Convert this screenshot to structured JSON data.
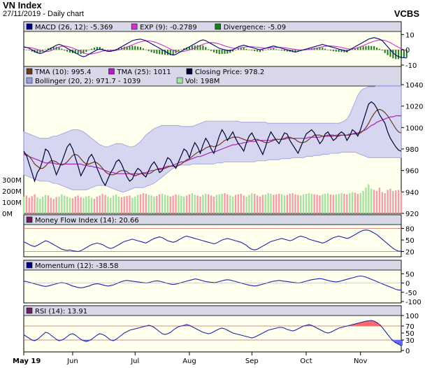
{
  "header": {
    "title": "VN Index",
    "subtitle": "27/11/2019 - Daily chart",
    "source": "VCBS"
  },
  "x_axis": {
    "months": [
      "May 19",
      "Jun",
      "Jul",
      "Aug",
      "Sep",
      "Oct",
      "Nov"
    ],
    "bold_first": true
  },
  "colors": {
    "panel_bg": "#ffffee",
    "legend_bg": "#d8d8e8",
    "tma10": "#6b3a1f",
    "tma25": "#aa22bb",
    "close": "#000033",
    "bollinger_fill": "#c8c8f0",
    "bollinger_edge": "#9a9ae0",
    "vol_up": "#a8e0a0",
    "vol_down": "#f0a0a8",
    "macd": "#000080",
    "exp": "#cc33cc",
    "divergence": "#1a7a1a",
    "indicator_line": "#2222aa",
    "ref_line": "#cc6666",
    "rsi_over": "#ff6666",
    "rsi_under": "#6666ff"
  },
  "panels": {
    "macd": {
      "legend": [
        {
          "label": "MACD (26, 12): -5.369",
          "color": "#000080"
        },
        {
          "label": "EXP (9): -0.2789",
          "color": "#cc33cc"
        },
        {
          "label": "Divergence: -5.09",
          "color": "#1a7a1a"
        }
      ],
      "ticks": [
        "10",
        "0",
        "-10"
      ],
      "ylim": [
        -10,
        12
      ]
    },
    "price": {
      "legend_row1": [
        {
          "label": "TMA (10): 995.4",
          "color": "#6b3a1f"
        },
        {
          "label": "TMA (25): 1011",
          "color": "#aa22bb"
        },
        {
          "label": "Closing Price: 978.2",
          "color": "#000033"
        }
      ],
      "legend_row2": [
        {
          "label": "Bollinger (20, 2): 971.7 - 1039",
          "color": "#9a9ae0"
        },
        {
          "label": "Vol: 198M",
          "color": "#a8e0a0"
        }
      ],
      "ticks": [
        "1040",
        "1020",
        "1000",
        "980",
        "960",
        "940",
        "920"
      ],
      "ylim": [
        920,
        1040
      ],
      "vol_ticks": [
        "300M",
        "200M",
        "100M",
        "0M"
      ],
      "vol_max": 300
    },
    "mfi": {
      "legend": [
        {
          "label": "Money Flow Index (14): 20.66",
          "color": "#6b2060"
        }
      ],
      "ticks": [
        "80",
        "50",
        "20"
      ],
      "ylim": [
        10,
        90
      ]
    },
    "momentum": {
      "legend": [
        {
          "label": "Momentum (12): -38.58",
          "color": "#000080"
        }
      ],
      "ticks": [
        "50",
        "0",
        "-50",
        "-100"
      ],
      "ylim": [
        -100,
        70
      ]
    },
    "rsi": {
      "legend": [
        {
          "label": "RSI (14): 13.91",
          "color": "#6b2060"
        }
      ],
      "ticks": [
        "100",
        "70",
        "50",
        "30",
        "0"
      ],
      "ylim": [
        0,
        100
      ]
    }
  },
  "chart_data": {
    "type": "line",
    "n": 140,
    "close": [
      978,
      974,
      966,
      958,
      950,
      958,
      962,
      970,
      980,
      978,
      972,
      964,
      956,
      962,
      968,
      975,
      982,
      985,
      980,
      972,
      964,
      955,
      960,
      965,
      972,
      975,
      970,
      962,
      956,
      950,
      946,
      952,
      958,
      962,
      968,
      970,
      966,
      960,
      954,
      950,
      952,
      958,
      962,
      960,
      956,
      954,
      960,
      965,
      968,
      964,
      958,
      960,
      966,
      972,
      970,
      965,
      962,
      968,
      974,
      980,
      978,
      972,
      980,
      986,
      982,
      976,
      984,
      990,
      986,
      980,
      976,
      984,
      992,
      998,
      994,
      988,
      992,
      996,
      990,
      985,
      982,
      978,
      986,
      992,
      995,
      990,
      985,
      980,
      975,
      982,
      990,
      996,
      992,
      988,
      985,
      990,
      995,
      994,
      988,
      984,
      980,
      976,
      982,
      988,
      994,
      996,
      998,
      995,
      990,
      985,
      988,
      994,
      996,
      992,
      988,
      990,
      994,
      996,
      994,
      988,
      992,
      998,
      996,
      992,
      998,
      1006,
      1014,
      1022,
      1024,
      1022,
      1018,
      1012,
      1008,
      1004,
      996,
      990,
      986,
      982,
      979,
      978
    ],
    "tma10": [
      976,
      975,
      973,
      970,
      966,
      964,
      962,
      962,
      964,
      967,
      969,
      969,
      968,
      966,
      965,
      966,
      968,
      971,
      974,
      975,
      974,
      971,
      968,
      966,
      966,
      967,
      968,
      967,
      965,
      962,
      959,
      957,
      956,
      956,
      957,
      959,
      960,
      960,
      959,
      957,
      956,
      955,
      956,
      957,
      957,
      957,
      957,
      958,
      960,
      961,
      961,
      961,
      962,
      963,
      964,
      964,
      964,
      965,
      966,
      968,
      970,
      971,
      973,
      975,
      977,
      978,
      979,
      981,
      982,
      983,
      982,
      983,
      984,
      986,
      988,
      989,
      990,
      991,
      991,
      991,
      990,
      989,
      988,
      988,
      988,
      989,
      989,
      988,
      987,
      986,
      986,
      987,
      988,
      989,
      989,
      989,
      990,
      991,
      991,
      990,
      989,
      987,
      986,
      986,
      987,
      989,
      991,
      993,
      993,
      993,
      992,
      992,
      993,
      993,
      993,
      992,
      992,
      993,
      993,
      993,
      993,
      994,
      994,
      994,
      995,
      997,
      1000,
      1004,
      1009,
      1013,
      1016,
      1017,
      1016,
      1014,
      1011,
      1007,
      1003,
      999,
      996,
      995
    ],
    "tma25": [
      975,
      974,
      973,
      972,
      971,
      970,
      969,
      968,
      967,
      967,
      967,
      967,
      966,
      966,
      966,
      966,
      966,
      966,
      966,
      966,
      966,
      966,
      965,
      965,
      964,
      964,
      963,
      963,
      962,
      961,
      960,
      959,
      958,
      958,
      957,
      957,
      957,
      957,
      957,
      957,
      957,
      957,
      957,
      957,
      958,
      958,
      959,
      960,
      960,
      961,
      962,
      962,
      963,
      964,
      964,
      965,
      966,
      967,
      968,
      968,
      969,
      970,
      971,
      972,
      973,
      973,
      974,
      975,
      976,
      977,
      977,
      978,
      979,
      980,
      981,
      982,
      983,
      984,
      984,
      985,
      985,
      986,
      986,
      987,
      987,
      987,
      988,
      988,
      988,
      988,
      988,
      988,
      989,
      989,
      989,
      989,
      989,
      990,
      990,
      990,
      990,
      990,
      990,
      990,
      990,
      991,
      991,
      991,
      991,
      991,
      992,
      992,
      992,
      992,
      992,
      993,
      993,
      993,
      993,
      993,
      994,
      994,
      995,
      995,
      996,
      997,
      998,
      1000,
      1002,
      1003,
      1005,
      1006,
      1007,
      1008,
      1009,
      1010,
      1010,
      1011,
      1011,
      1011
    ],
    "boll_upper": [
      996,
      995,
      994,
      993,
      992,
      991,
      990,
      990,
      990,
      990,
      991,
      992,
      992,
      993,
      994,
      995,
      996,
      997,
      998,
      998,
      998,
      997,
      996,
      994,
      992,
      990,
      988,
      986,
      984,
      983,
      982,
      982,
      983,
      984,
      985,
      985,
      985,
      984,
      983,
      982,
      982,
      983,
      985,
      987,
      990,
      993,
      995,
      997,
      999,
      1000,
      1001,
      1002,
      1002,
      1002,
      1002,
      1002,
      1002,
      1002,
      1001,
      1001,
      1001,
      1001,
      1001,
      1002,
      1003,
      1004,
      1005,
      1006,
      1006,
      1006,
      1006,
      1006,
      1006,
      1006,
      1006,
      1006,
      1006,
      1006,
      1006,
      1006,
      1005,
      1005,
      1005,
      1005,
      1005,
      1005,
      1005,
      1005,
      1005,
      1005,
      1004,
      1004,
      1004,
      1004,
      1004,
      1004,
      1004,
      1004,
      1004,
      1004,
      1004,
      1004,
      1004,
      1004,
      1004,
      1004,
      1004,
      1004,
      1004,
      1004,
      1004,
      1004,
      1004,
      1004,
      1004,
      1004,
      1004,
      1005,
      1006,
      1008,
      1012,
      1018,
      1024,
      1030,
      1034,
      1036,
      1037,
      1038,
      1038,
      1038,
      1039,
      1039,
      1039,
      1039,
      1039,
      1039,
      1039,
      1039,
      1039,
      1039
    ],
    "boll_lower": [
      956,
      955,
      954,
      953,
      952,
      951,
      950,
      950,
      950,
      950,
      949,
      948,
      948,
      947,
      946,
      945,
      944,
      943,
      942,
      942,
      942,
      942,
      942,
      942,
      943,
      944,
      945,
      946,
      946,
      946,
      946,
      945,
      944,
      943,
      942,
      941,
      940,
      940,
      941,
      942,
      943,
      944,
      944,
      944,
      944,
      945,
      946,
      947,
      948,
      950,
      952,
      954,
      956,
      958,
      960,
      962,
      963,
      964,
      965,
      965,
      965,
      965,
      966,
      966,
      966,
      966,
      966,
      966,
      966,
      966,
      966,
      967,
      967,
      967,
      968,
      968,
      968,
      968,
      968,
      968,
      968,
      968,
      968,
      968,
      968,
      968,
      969,
      969,
      969,
      969,
      970,
      970,
      970,
      970,
      970,
      971,
      971,
      971,
      971,
      972,
      972,
      972,
      972,
      972,
      973,
      973,
      973,
      974,
      974,
      974,
      975,
      975,
      975,
      976,
      976,
      976,
      976,
      977,
      977,
      977,
      977,
      977,
      977,
      976,
      975,
      974,
      973,
      972,
      972,
      972,
      972,
      972,
      972,
      972,
      972,
      972,
      972,
      972,
      972,
      972
    ],
    "volume": [
      150,
      160,
      140,
      155,
      170,
      145,
      130,
      150,
      165,
      160,
      140,
      130,
      145,
      150,
      170,
      160,
      150,
      140,
      135,
      150,
      160,
      145,
      140,
      150,
      155,
      140,
      130,
      150,
      160,
      175,
      165,
      150,
      140,
      160,
      170,
      150,
      145,
      150,
      155,
      160,
      140,
      150,
      165,
      170,
      180,
      175,
      165,
      160,
      150,
      155,
      170,
      175,
      165,
      160,
      150,
      160,
      170,
      165,
      155,
      150,
      160,
      170,
      180,
      165,
      160,
      150,
      165,
      175,
      170,
      160,
      150,
      165,
      170,
      175,
      180,
      170,
      160,
      150,
      165,
      170,
      175,
      160,
      150,
      165,
      180,
      175,
      160,
      150,
      165,
      170,
      180,
      175,
      165,
      170,
      175,
      170,
      160,
      165,
      175,
      180,
      170,
      165,
      160,
      170,
      175,
      180,
      175,
      170,
      165,
      160,
      170,
      175,
      180,
      170,
      165,
      170,
      175,
      180,
      175,
      170,
      180,
      190,
      185,
      175,
      180,
      200,
      230,
      260,
      220,
      210,
      200,
      230,
      190,
      180,
      210,
      220,
      200,
      205,
      210,
      198
    ],
    "macd": [
      2,
      1.5,
      1,
      0,
      -1,
      -2,
      -2.5,
      -2,
      -1,
      0,
      1,
      2,
      3,
      3.5,
      3,
      2,
      1,
      0,
      -1,
      -2,
      -3,
      -4,
      -4.5,
      -4,
      -3,
      -2,
      -1,
      0,
      0.5,
      0,
      -0.5,
      -1,
      -1,
      -0.5,
      0,
      1,
      2,
      3,
      4,
      5,
      6,
      6.5,
      6.8,
      7,
      6.5,
      6,
      5,
      4,
      3,
      2,
      1,
      0,
      -1,
      -2,
      -3,
      -3.5,
      -3,
      -2,
      -1,
      0,
      1,
      2,
      3,
      4,
      5,
      6,
      6.5,
      6,
      5,
      4,
      3,
      2,
      1,
      0.5,
      0,
      -0.5,
      -0.5,
      0,
      1,
      2,
      2.5,
      3,
      2.5,
      2,
      1.5,
      1,
      0.5,
      0,
      0.5,
      1,
      1.5,
      2,
      2.5,
      2,
      1.5,
      1,
      0.5,
      0,
      -0.5,
      -1,
      -1.5,
      -1,
      -0.5,
      0,
      0.5,
      1,
      1.5,
      2,
      2.5,
      3,
      3.5,
      3,
      2.5,
      2,
      1.5,
      1,
      0.5,
      0,
      -0.5,
      -1,
      0,
      1,
      2,
      3,
      4,
      5,
      6,
      7,
      7.5,
      8,
      7.5,
      7,
      6,
      4,
      2,
      0,
      -2,
      -3.5,
      -4.5,
      -5,
      -5.2,
      -5.369
    ],
    "exp": [
      1.5,
      1.5,
      1.4,
      1.2,
      0.8,
      0.2,
      -0.5,
      -1,
      -1.2,
      -1,
      -0.5,
      0.2,
      1,
      1.8,
      2.3,
      2.5,
      2.2,
      1.8,
      1.2,
      0.5,
      -0.3,
      -1.2,
      -2,
      -2.6,
      -2.8,
      -2.7,
      -2.4,
      -1.9,
      -1.4,
      -0.9,
      -0.6,
      -0.5,
      -0.5,
      -0.5,
      -0.4,
      -0.1,
      0.4,
      1,
      1.8,
      2.5,
      3.3,
      4,
      4.7,
      5.2,
      5.6,
      5.8,
      5.8,
      5.6,
      5.2,
      4.6,
      3.9,
      3.1,
      2.3,
      1.4,
      0.5,
      -0.3,
      -0.9,
      -1.2,
      -1.2,
      -1,
      -0.6,
      -0.1,
      0.5,
      1.2,
      2,
      2.8,
      3.6,
      4.2,
      4.6,
      4.7,
      4.6,
      4.3,
      3.8,
      3.2,
      2.6,
      2,
      1.5,
      1.1,
      1,
      1.1,
      1.4,
      1.7,
      1.9,
      2,
      2,
      1.9,
      1.7,
      1.4,
      1.2,
      1.1,
      1.1,
      1.3,
      1.5,
      1.6,
      1.6,
      1.5,
      1.3,
      1.1,
      0.8,
      0.5,
      0.2,
      0,
      -0.1,
      -0.1,
      0,
      0.2,
      0.5,
      0.8,
      1.2,
      1.6,
      2,
      2.3,
      2.5,
      2.5,
      2.4,
      2.2,
      1.9,
      1.5,
      1.1,
      0.7,
      0.5,
      0.6,
      0.9,
      1.4,
      2,
      2.7,
      3.5,
      4.3,
      5,
      5.6,
      6.1,
      6.4,
      6.4,
      6.1,
      5.5,
      4.6,
      3.6,
      2.6,
      1.6,
      0.7,
      0,
      -0.2789
    ],
    "mfi": [
      45,
      42,
      38,
      35,
      33,
      36,
      40,
      44,
      48,
      46,
      42,
      38,
      34,
      30,
      26,
      24,
      23,
      24,
      22,
      21,
      20,
      22,
      26,
      30,
      34,
      38,
      40,
      42,
      40,
      38,
      34,
      30,
      28,
      30,
      34,
      38,
      42,
      46,
      48,
      50,
      52,
      50,
      48,
      46,
      44,
      42,
      46,
      50,
      54,
      56,
      58,
      56,
      52,
      48,
      46,
      44,
      46,
      50,
      54,
      58,
      60,
      58,
      56,
      54,
      52,
      50,
      48,
      46,
      44,
      42,
      40,
      42,
      46,
      50,
      52,
      54,
      52,
      50,
      48,
      46,
      44,
      40,
      36,
      30,
      26,
      24,
      26,
      30,
      34,
      38,
      42,
      46,
      48,
      50,
      52,
      54,
      52,
      50,
      48,
      50,
      54,
      58,
      60,
      58,
      56,
      52,
      50,
      48,
      46,
      44,
      42,
      44,
      48,
      52,
      56,
      58,
      60,
      58,
      56,
      54,
      56,
      60,
      64,
      68,
      72,
      75,
      76,
      75,
      72,
      68,
      64,
      58,
      52,
      46,
      40,
      34,
      28,
      24,
      21,
      20.66
    ],
    "momentum": [
      10,
      8,
      4,
      0,
      -4,
      -8,
      -12,
      -16,
      -18,
      -16,
      -12,
      -8,
      -4,
      0,
      2,
      0,
      -4,
      -10,
      -16,
      -20,
      -24,
      -26,
      -24,
      -20,
      -16,
      -10,
      -6,
      -4,
      -6,
      -10,
      -14,
      -16,
      -14,
      -10,
      -4,
      2,
      8,
      12,
      14,
      12,
      10,
      8,
      6,
      4,
      2,
      0,
      2,
      6,
      10,
      12,
      10,
      6,
      2,
      -2,
      -6,
      -8,
      -6,
      -2,
      2,
      6,
      10,
      14,
      18,
      22,
      20,
      16,
      12,
      8,
      6,
      4,
      2,
      4,
      8,
      12,
      16,
      18,
      16,
      12,
      8,
      4,
      0,
      -4,
      -8,
      -12,
      -14,
      -16,
      -14,
      -10,
      -6,
      -2,
      2,
      6,
      10,
      12,
      14,
      12,
      10,
      8,
      6,
      4,
      2,
      0,
      2,
      6,
      10,
      14,
      18,
      20,
      22,
      24,
      22,
      18,
      14,
      10,
      8,
      6,
      8,
      12,
      16,
      20,
      24,
      28,
      32,
      36,
      38,
      36,
      32,
      26,
      20,
      14,
      8,
      2,
      -4,
      -10,
      -16,
      -22,
      -28,
      -34,
      -38,
      -38.58
    ],
    "rsi": [
      45,
      40,
      35,
      30,
      28,
      32,
      38,
      45,
      52,
      50,
      44,
      38,
      32,
      28,
      30,
      34,
      40,
      46,
      48,
      44,
      38,
      32,
      28,
      26,
      28,
      32,
      38,
      44,
      48,
      46,
      42,
      36,
      30,
      28,
      32,
      38,
      44,
      50,
      54,
      58,
      60,
      62,
      64,
      66,
      68,
      70,
      72,
      70,
      66,
      60,
      54,
      48,
      46,
      48,
      52,
      58,
      64,
      68,
      70,
      72,
      74,
      72,
      68,
      64,
      60,
      56,
      52,
      50,
      48,
      50,
      54,
      58,
      62,
      64,
      62,
      58,
      54,
      50,
      48,
      46,
      44,
      42,
      40,
      38,
      36,
      38,
      42,
      46,
      50,
      54,
      58,
      60,
      62,
      64,
      66,
      66,
      64,
      60,
      58,
      56,
      58,
      62,
      66,
      70,
      72,
      74,
      72,
      68,
      64,
      60,
      56,
      52,
      50,
      52,
      56,
      60,
      64,
      66,
      68,
      70,
      72,
      74,
      76,
      78,
      80,
      82,
      84,
      85,
      86,
      84,
      80,
      74,
      66,
      56,
      46,
      36,
      28,
      22,
      18,
      13.91
    ]
  }
}
